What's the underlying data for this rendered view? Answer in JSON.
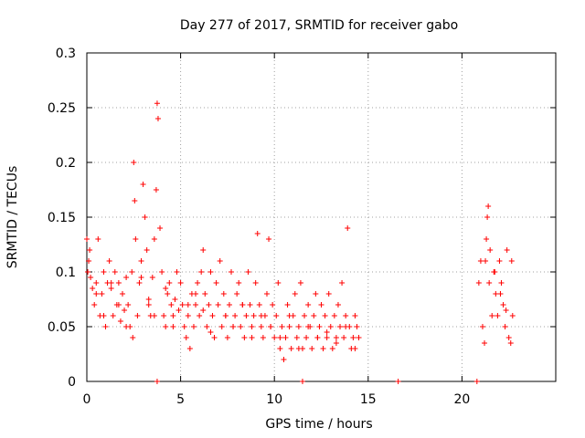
{
  "chart_data": {
    "type": "scatter",
    "title": "Day 277 of 2017, SRMTID for receiver gabo",
    "xlabel": "GPS time / hours",
    "ylabel": "SRMTID / TECUs",
    "xlim": [
      0,
      25
    ],
    "ylim": [
      0,
      0.3
    ],
    "grid": true,
    "marker": "+",
    "color": "#ff0000",
    "xticks": [
      0,
      5,
      10,
      15,
      20
    ],
    "xtick_labels": [
      "0",
      "5",
      "10",
      "15",
      "20"
    ],
    "yticks": [
      0,
      0.05,
      0.1,
      0.15,
      0.2,
      0.25,
      0.3
    ],
    "ytick_labels": [
      "0",
      "0.05",
      "0.1",
      "0.15",
      "0.2",
      "0.25",
      "0.3"
    ],
    "series": [
      {
        "name": "SRMTID",
        "x": [
          0.0,
          0.1,
          0.2,
          0.3,
          0.4,
          0.5,
          0.6,
          0.7,
          0.8,
          0.9,
          1.0,
          1.1,
          1.2,
          1.3,
          1.4,
          1.5,
          1.6,
          1.7,
          1.8,
          1.9,
          2.0,
          2.1,
          2.2,
          2.3,
          2.4,
          2.5,
          2.55,
          2.6,
          2.7,
          2.8,
          2.9,
          3.0,
          3.1,
          3.2,
          3.3,
          3.4,
          3.5,
          3.6,
          3.7,
          3.75,
          3.8,
          3.9,
          4.0,
          4.1,
          4.2,
          4.3,
          4.4,
          4.5,
          4.6,
          4.7,
          4.8,
          4.9,
          5.0,
          5.1,
          5.2,
          5.3,
          5.4,
          5.5,
          5.6,
          5.7,
          5.8,
          5.9,
          6.0,
          6.1,
          6.2,
          6.3,
          6.4,
          6.5,
          6.6,
          6.7,
          6.8,
          6.9,
          7.0,
          7.1,
          7.2,
          7.3,
          7.4,
          7.5,
          7.6,
          7.7,
          7.8,
          7.9,
          8.0,
          8.1,
          8.2,
          8.3,
          8.4,
          8.5,
          8.6,
          8.7,
          8.8,
          8.9,
          9.0,
          9.1,
          9.2,
          9.3,
          9.4,
          9.5,
          9.6,
          9.7,
          9.8,
          9.9,
          10.0,
          10.1,
          10.2,
          10.3,
          10.4,
          10.5,
          10.6,
          10.7,
          10.8,
          10.9,
          11.0,
          11.1,
          11.2,
          11.3,
          11.4,
          11.5,
          11.6,
          11.7,
          11.8,
          11.9,
          12.0,
          12.1,
          12.2,
          12.3,
          12.4,
          12.5,
          12.6,
          12.7,
          12.8,
          12.9,
          13.0,
          13.1,
          13.2,
          13.3,
          13.4,
          13.5,
          13.6,
          13.7,
          13.8,
          13.9,
          14.0,
          14.1,
          14.2,
          14.3,
          14.4,
          14.5,
          3.75,
          11.5,
          16.6,
          20.8,
          20.9,
          21.0,
          21.1,
          21.2,
          21.3,
          21.35,
          21.4,
          21.5,
          21.6,
          21.7,
          21.8,
          21.9,
          22.0,
          22.1,
          22.2,
          22.3,
          22.4,
          22.5,
          22.6,
          22.7,
          0.05,
          0.15,
          0.5,
          0.9,
          1.3,
          1.7,
          2.1,
          2.45,
          2.9,
          3.3,
          3.6,
          4.2,
          4.6,
          5.4,
          5.8,
          6.2,
          6.6,
          7.4,
          7.8,
          8.3,
          8.8,
          9.3,
          9.8,
          10.3,
          10.8,
          11.3,
          11.8,
          12.3,
          12.8,
          13.3,
          13.8,
          14.3,
          21.25,
          21.45,
          21.75,
          22.05,
          22.35,
          22.65
        ],
        "y": [
          0.13,
          0.11,
          0.095,
          0.085,
          0.07,
          0.09,
          0.13,
          0.06,
          0.08,
          0.1,
          0.05,
          0.09,
          0.11,
          0.085,
          0.06,
          0.1,
          0.07,
          0.09,
          0.055,
          0.08,
          0.065,
          0.095,
          0.07,
          0.05,
          0.1,
          0.2,
          0.165,
          0.13,
          0.06,
          0.09,
          0.11,
          0.18,
          0.15,
          0.12,
          0.07,
          0.06,
          0.095,
          0.13,
          0.175,
          0.254,
          0.24,
          0.14,
          0.1,
          0.06,
          0.05,
          0.08,
          0.09,
          0.07,
          0.06,
          0.075,
          0.1,
          0.065,
          0.09,
          0.07,
          0.05,
          0.04,
          0.06,
          0.03,
          0.08,
          0.05,
          0.07,
          0.09,
          0.06,
          0.1,
          0.12,
          0.08,
          0.05,
          0.07,
          0.1,
          0.06,
          0.04,
          0.09,
          0.07,
          0.11,
          0.05,
          0.08,
          0.06,
          0.04,
          0.07,
          0.1,
          0.05,
          0.06,
          0.08,
          0.09,
          0.05,
          0.07,
          0.04,
          0.06,
          0.1,
          0.07,
          0.05,
          0.06,
          0.09,
          0.135,
          0.07,
          0.05,
          0.04,
          0.06,
          0.08,
          0.13,
          0.05,
          0.07,
          0.04,
          0.06,
          0.09,
          0.03,
          0.05,
          0.02,
          0.04,
          0.07,
          0.05,
          0.03,
          0.06,
          0.08,
          0.04,
          0.05,
          0.09,
          0.03,
          0.06,
          0.04,
          0.07,
          0.05,
          0.03,
          0.06,
          0.08,
          0.04,
          0.05,
          0.07,
          0.03,
          0.06,
          0.04,
          0.08,
          0.05,
          0.03,
          0.06,
          0.04,
          0.07,
          0.05,
          0.09,
          0.04,
          0.06,
          0.14,
          0.05,
          0.03,
          0.04,
          0.06,
          0.05,
          0.04,
          0.0,
          0.0,
          0.0,
          0.0,
          0.09,
          0.11,
          0.05,
          0.035,
          0.13,
          0.15,
          0.16,
          0.12,
          0.06,
          0.1,
          0.08,
          0.06,
          0.11,
          0.09,
          0.07,
          0.05,
          0.12,
          0.04,
          0.035,
          0.06,
          0.1,
          0.12,
          0.08,
          0.06,
          0.09,
          0.07,
          0.05,
          0.04,
          0.095,
          0.075,
          0.06,
          0.085,
          0.05,
          0.07,
          0.08,
          0.065,
          0.045,
          0.06,
          0.05,
          0.07,
          0.04,
          0.06,
          0.05,
          0.04,
          0.06,
          0.03,
          0.05,
          0.04,
          0.045,
          0.035,
          0.05,
          0.03,
          0.11,
          0.09,
          0.1,
          0.08,
          0.065,
          0.11
        ]
      }
    ]
  }
}
